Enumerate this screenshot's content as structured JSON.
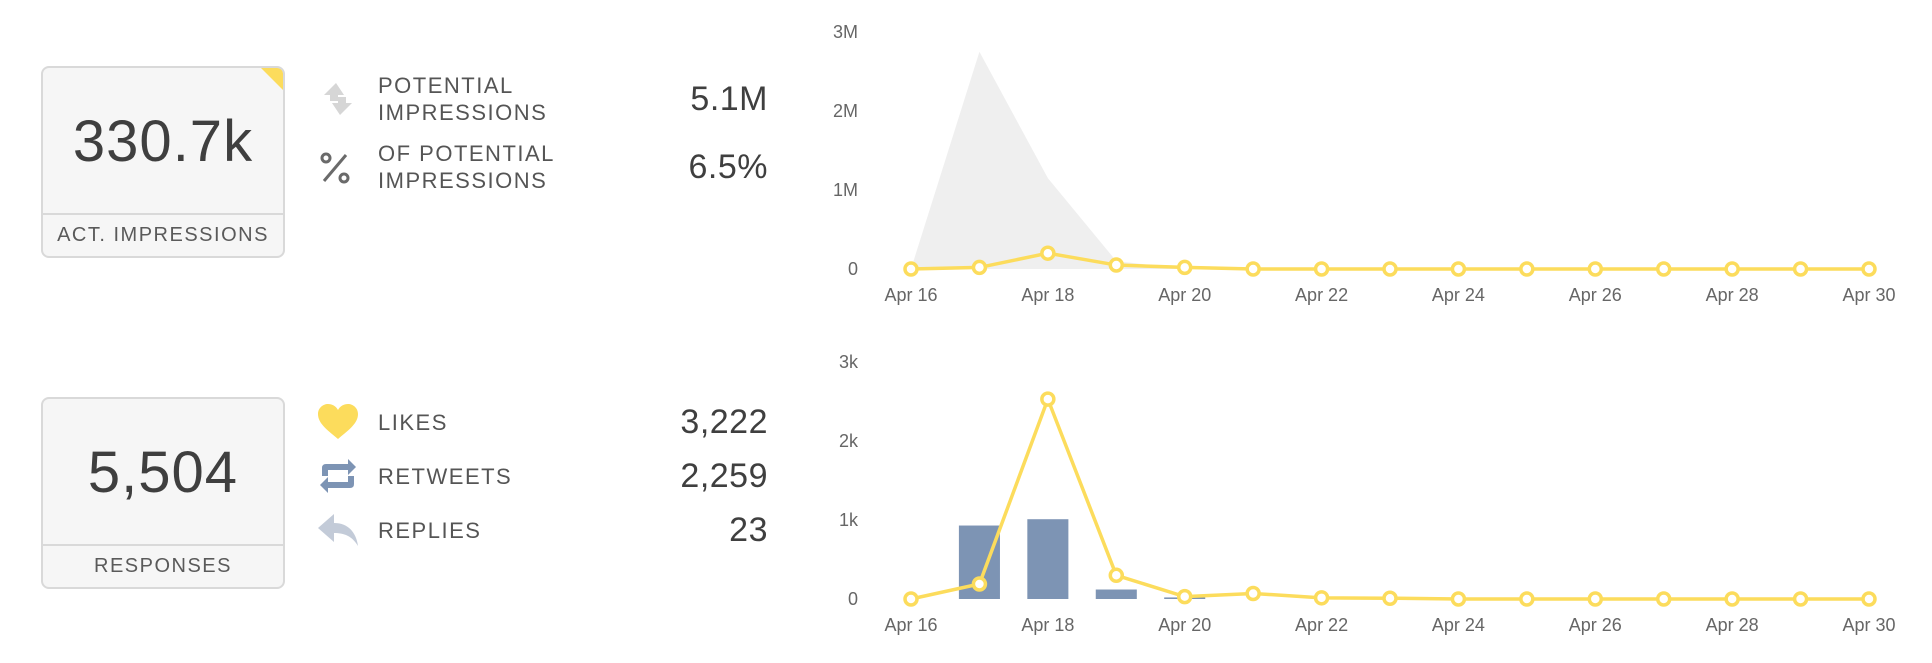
{
  "impressions": {
    "kpi_value": "330.7k",
    "kpi_label": "ACT. IMPRESSIONS",
    "metrics": [
      {
        "label": "POTENTIAL IMPRESSIONS",
        "value": "5.1M",
        "icon": "arrows-icon"
      },
      {
        "label": "OF POTENTIAL IMPRESSIONS",
        "value": "6.5%",
        "icon": "percent-icon"
      }
    ]
  },
  "responses": {
    "kpi_value": "5,504",
    "kpi_label": "RESPONSES",
    "metrics": [
      {
        "label": "LIKES",
        "value": "3,222",
        "icon": "heart-icon"
      },
      {
        "label": "RETWEETS",
        "value": "2,259",
        "icon": "retweet-icon"
      },
      {
        "label": "REPLIES",
        "value": "23",
        "icon": "reply-icon"
      }
    ]
  },
  "colors": {
    "accent_yellow": "#fcdc5c",
    "bar_blue": "#7d94b4",
    "area_grey": "#efefef",
    "icon_grey": "#d0d0d0",
    "icon_blue_grey": "#8a9cba"
  },
  "chart_data": [
    {
      "type": "area",
      "x_tick_labels": [
        "Apr 16",
        "Apr 18",
        "Apr 20",
        "Apr 22",
        "Apr 24",
        "Apr 26",
        "Apr 28",
        "Apr 30"
      ],
      "x": [
        "Apr 16",
        "Apr 17",
        "Apr 18",
        "Apr 19",
        "Apr 20",
        "Apr 21",
        "Apr 22",
        "Apr 23",
        "Apr 24",
        "Apr 25",
        "Apr 26",
        "Apr 27",
        "Apr 28",
        "Apr 29",
        "Apr 30"
      ],
      "y_tick_labels": [
        "0",
        "1M",
        "2M",
        "3M"
      ],
      "ylim": [
        0,
        3000000
      ],
      "y_ticks": [
        0,
        1000000,
        2000000,
        3000000
      ],
      "series": [
        {
          "kind": "area",
          "values": [
            0,
            2750000,
            1150000,
            100000,
            0,
            0,
            0,
            0,
            0,
            0,
            0,
            0,
            0,
            0,
            0
          ]
        },
        {
          "kind": "line",
          "values": [
            0,
            20000,
            200000,
            50000,
            20000,
            0,
            0,
            0,
            0,
            0,
            0,
            0,
            0,
            0,
            0
          ]
        }
      ],
      "grid": false
    },
    {
      "type": "bar",
      "x_tick_labels": [
        "Apr 16",
        "Apr 18",
        "Apr 20",
        "Apr 22",
        "Apr 24",
        "Apr 26",
        "Apr 28",
        "Apr 30"
      ],
      "x": [
        "Apr 16",
        "Apr 17",
        "Apr 18",
        "Apr 19",
        "Apr 20",
        "Apr 21",
        "Apr 22",
        "Apr 23",
        "Apr 24",
        "Apr 25",
        "Apr 26",
        "Apr 27",
        "Apr 28",
        "Apr 29",
        "Apr 30"
      ],
      "y_tick_labels": [
        "0",
        "1k",
        "2k",
        "3k"
      ],
      "ylim": [
        0,
        3000
      ],
      "y_ticks": [
        0,
        1000,
        2000,
        3000
      ],
      "series": [
        {
          "kind": "bar",
          "values": [
            0,
            930,
            1010,
            120,
            20,
            0,
            0,
            0,
            0,
            0,
            0,
            0,
            0,
            0,
            0
          ]
        },
        {
          "kind": "line",
          "values": [
            0,
            190,
            2530,
            300,
            30,
            70,
            15,
            10,
            0,
            0,
            0,
            0,
            0,
            0,
            0
          ]
        }
      ],
      "grid": false
    }
  ]
}
